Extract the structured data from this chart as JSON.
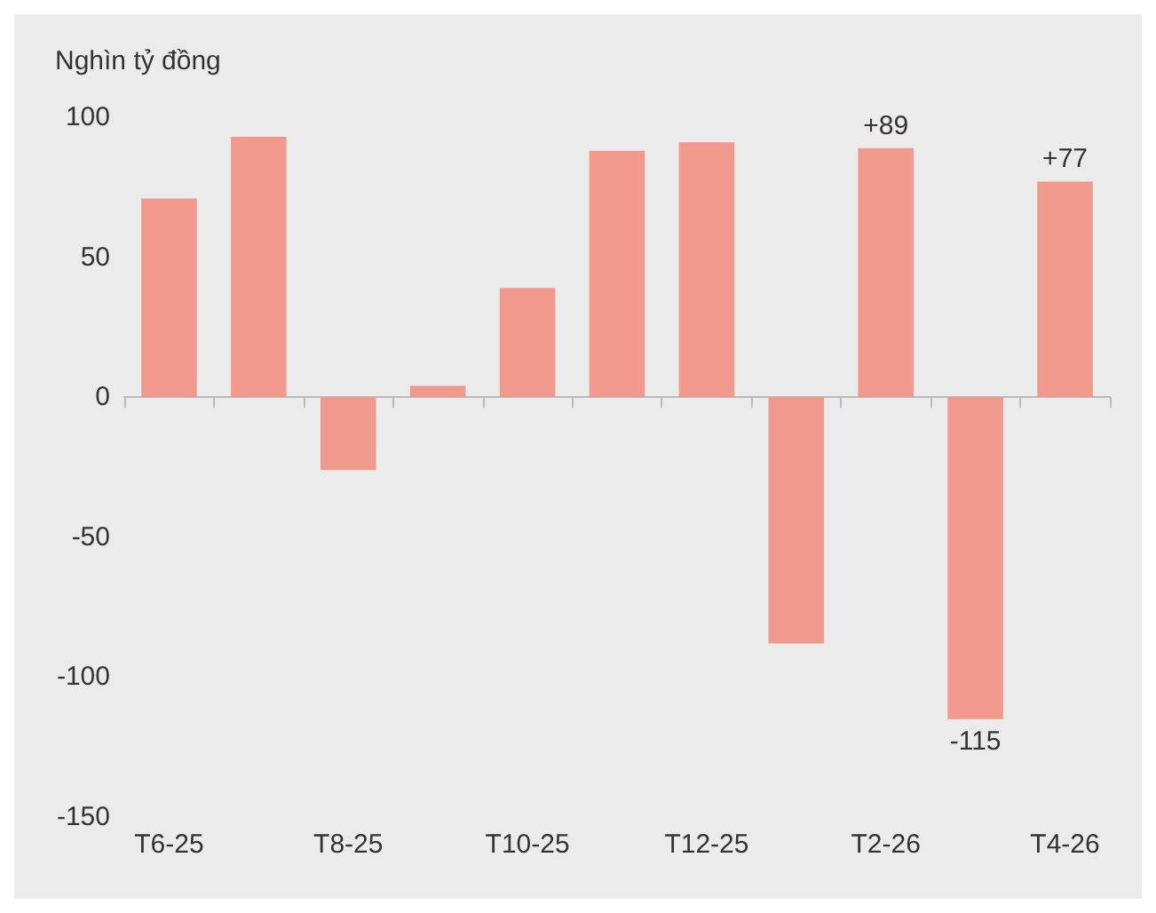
{
  "chart_data": {
    "type": "bar",
    "ylabel": "Nghìn tỷ đồng",
    "categories": [
      "T6-25",
      null,
      "T8-25",
      null,
      "T10-25",
      null,
      "T12-25",
      null,
      "T2-26",
      null,
      "T4-26"
    ],
    "values": [
      71,
      93,
      -26,
      4,
      39,
      88,
      91,
      -88,
      89,
      -115,
      77
    ],
    "value_labels": [
      null,
      null,
      null,
      null,
      null,
      null,
      null,
      null,
      "+89",
      "-115",
      "+77"
    ],
    "color": "#f2998e",
    "ylim": [
      -150,
      100
    ],
    "yticks": [
      -150,
      -100,
      -50,
      0,
      50,
      100
    ]
  }
}
